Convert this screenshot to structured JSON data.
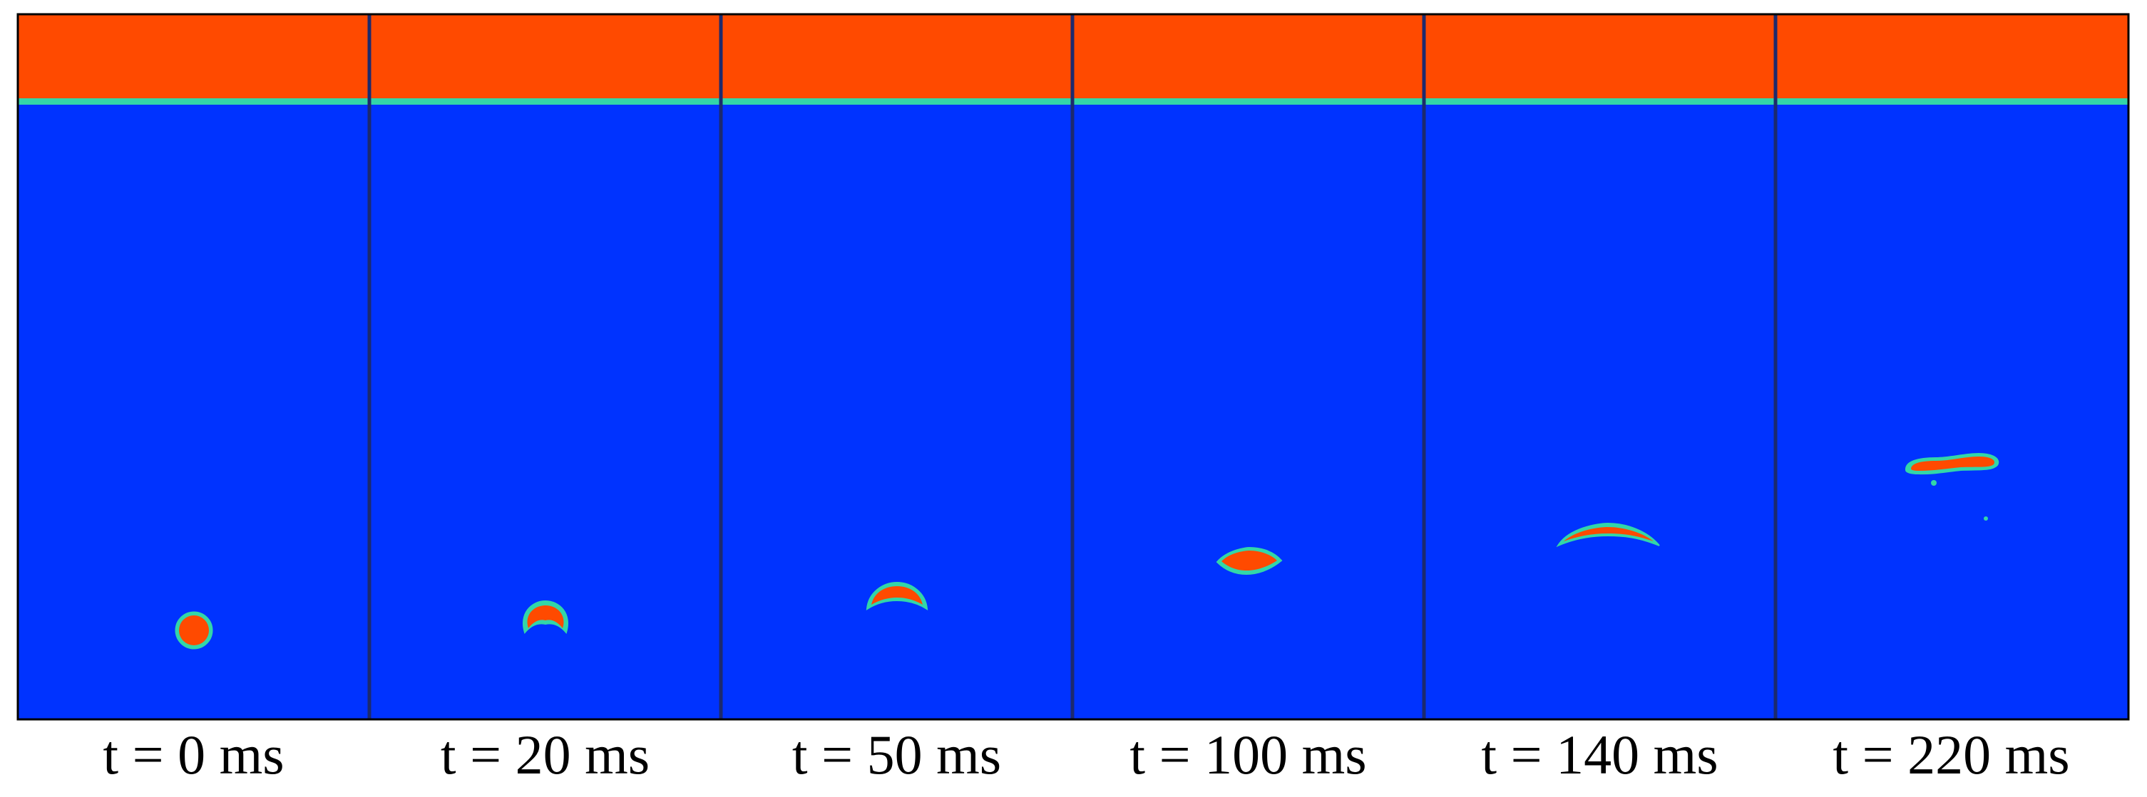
{
  "figure": {
    "colors": {
      "liquid": "#FF4A00",
      "gas": "#0033FF",
      "interface": "#33D6A8",
      "divider": "#1C2A6E",
      "border": "#000000"
    },
    "panels": [
      {
        "label": "t = 0 ms",
        "bubble_shape": "sphere"
      },
      {
        "label": "t = 20 ms",
        "bubble_shape": "dimpled-cap"
      },
      {
        "label": "t = 50 ms",
        "bubble_shape": "cap"
      },
      {
        "label": "t = 100 ms",
        "bubble_shape": "lens"
      },
      {
        "label": "t = 140 ms",
        "bubble_shape": "arc"
      },
      {
        "label": "t = 220 ms",
        "bubble_shape": "elongated-with-satellites"
      }
    ]
  }
}
